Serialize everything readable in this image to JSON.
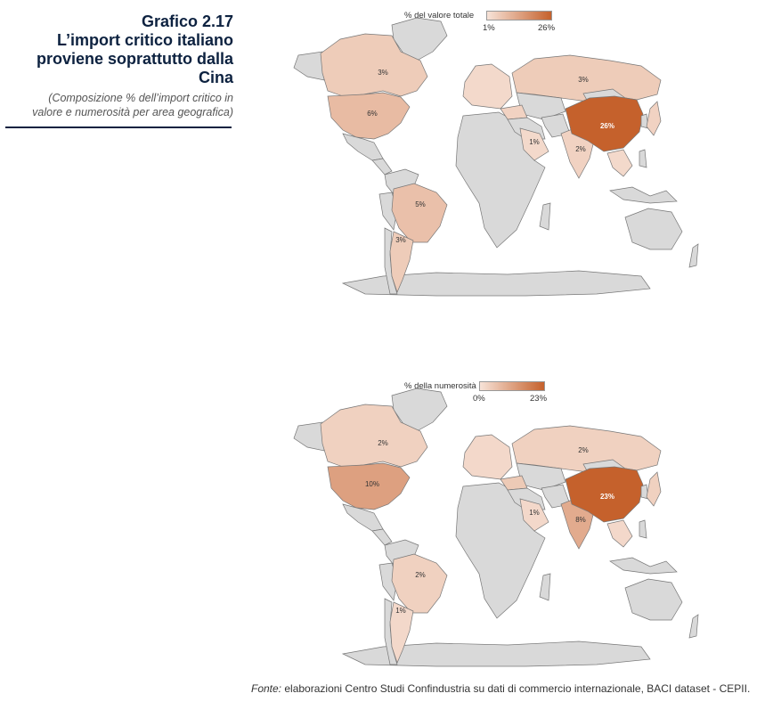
{
  "header": {
    "label": "Grafico 2.17",
    "title_line1": "L’import critico italiano",
    "title_line2": "proviene soprattutto dalla Cina",
    "subtitle_line1": "(Composizione % dell’import critico in",
    "subtitle_line2": "valore e numerosità per area geografica)"
  },
  "colors": {
    "land_default": "#d9d9d9",
    "scale_low": "#f7e3d8",
    "scale_high": "#c5612c",
    "title_navy": "#0d2240"
  },
  "maps": [
    {
      "legend": {
        "title": "% del valore totale",
        "min": "1%",
        "max": "26%"
      },
      "regions": [
        {
          "id": "canada",
          "value": 3,
          "label": "3%"
        },
        {
          "id": "usa",
          "value": 6,
          "label": "6%"
        },
        {
          "id": "brazil",
          "value": 5,
          "label": "5%"
        },
        {
          "id": "argentina",
          "value": 3,
          "label": "3%"
        },
        {
          "id": "russia",
          "value": 3,
          "label": "3%"
        },
        {
          "id": "china",
          "value": 26,
          "label": "26%"
        },
        {
          "id": "india",
          "value": 2,
          "label": "2%"
        },
        {
          "id": "saudi",
          "value": 1,
          "label": "1%"
        },
        {
          "id": "turkey",
          "value": 2,
          "label": ""
        },
        {
          "id": "japan",
          "value": 2,
          "label": ""
        },
        {
          "id": "sea",
          "value": 1,
          "label": ""
        },
        {
          "id": "europe",
          "value": 1,
          "label": ""
        }
      ]
    },
    {
      "legend": {
        "title": "% della numerosità",
        "min": "0%",
        "max": "23%"
      },
      "regions": [
        {
          "id": "canada",
          "value": 2,
          "label": "2%"
        },
        {
          "id": "usa",
          "value": 10,
          "label": "10%"
        },
        {
          "id": "brazil",
          "value": 2,
          "label": "2%"
        },
        {
          "id": "argentina",
          "value": 1,
          "label": "1%"
        },
        {
          "id": "russia",
          "value": 2,
          "label": "2%"
        },
        {
          "id": "china",
          "value": 23,
          "label": "23%"
        },
        {
          "id": "india",
          "value": 8,
          "label": "8%"
        },
        {
          "id": "saudi",
          "value": 1,
          "label": "1%"
        },
        {
          "id": "turkey",
          "value": 3,
          "label": ""
        },
        {
          "id": "japan",
          "value": 2,
          "label": ""
        },
        {
          "id": "sea",
          "value": 1,
          "label": ""
        },
        {
          "id": "europe",
          "value": 1,
          "label": ""
        }
      ]
    }
  ],
  "footer": {
    "source_lead": "Fonte:",
    "source_text": " elaborazioni Centro Studi Confindustria su dati di commercio internazionale, BACI dataset - CEPII."
  }
}
